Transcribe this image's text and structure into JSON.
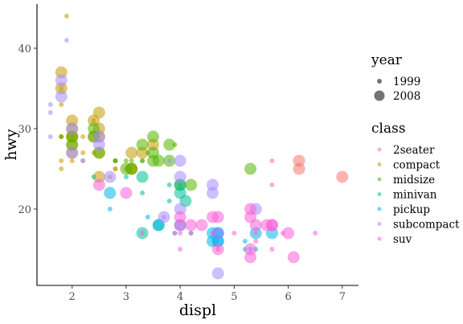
{
  "chart_data": {
    "type": "scatter",
    "xlabel": "displ",
    "ylabel": "hwy",
    "xlim": [
      1.35,
      7.3
    ],
    "ylim": [
      10.5,
      45.5
    ],
    "xticks": [
      2,
      3,
      4,
      5,
      6,
      7
    ],
    "yticks": [
      20,
      30,
      40
    ],
    "grid": false,
    "point_alpha": 0.55,
    "legend_placement": "right",
    "size_legend": {
      "title": "year",
      "entries": [
        {
          "label": "1999",
          "size": "small"
        },
        {
          "label": "2008",
          "size": "large"
        }
      ]
    },
    "color_legend": {
      "title": "class",
      "entries": [
        {
          "label": "2seater",
          "color": "#F8766D"
        },
        {
          "label": "compact",
          "color": "#C49A00"
        },
        {
          "label": "midsize",
          "color": "#53B400"
        },
        {
          "label": "minivan",
          "color": "#00C094"
        },
        {
          "label": "pickup",
          "color": "#00B6EB"
        },
        {
          "label": "subcompact",
          "color": "#A58AFF"
        },
        {
          "label": "suv",
          "color": "#FB61D7"
        }
      ]
    },
    "series": [
      {
        "name": "2seater",
        "color": "#F8766D",
        "points": [
          {
            "x": 5.7,
            "y": 26,
            "year": 1999
          },
          {
            "x": 5.7,
            "y": 23,
            "year": 1999
          },
          {
            "x": 6.2,
            "y": 26,
            "year": 2008
          },
          {
            "x": 6.2,
            "y": 25,
            "year": 2008
          },
          {
            "x": 7.0,
            "y": 24,
            "year": 2008
          }
        ]
      },
      {
        "name": "compact",
        "color": "#C49A00",
        "points": [
          {
            "x": 1.8,
            "y": 29,
            "year": 1999
          },
          {
            "x": 1.8,
            "y": 29,
            "year": 1999
          },
          {
            "x": 2.0,
            "y": 31,
            "year": 2008
          },
          {
            "x": 2.0,
            "y": 30,
            "year": 2008
          },
          {
            "x": 2.8,
            "y": 26,
            "year": 1999
          },
          {
            "x": 2.8,
            "y": 26,
            "year": 1999
          },
          {
            "x": 3.1,
            "y": 27,
            "year": 2008
          },
          {
            "x": 1.8,
            "y": 26,
            "year": 1999
          },
          {
            "x": 1.8,
            "y": 25,
            "year": 1999
          },
          {
            "x": 2.0,
            "y": 28,
            "year": 2008
          },
          {
            "x": 2.0,
            "y": 27,
            "year": 2008
          },
          {
            "x": 2.8,
            "y": 25,
            "year": 1999
          },
          {
            "x": 2.8,
            "y": 25,
            "year": 1999
          },
          {
            "x": 3.1,
            "y": 25,
            "year": 2008
          },
          {
            "x": 3.1,
            "y": 25,
            "year": 2008
          },
          {
            "x": 1.8,
            "y": 33,
            "year": 1999
          },
          {
            "x": 1.8,
            "y": 35,
            "year": 1999
          },
          {
            "x": 1.8,
            "y": 37,
            "year": 2008
          },
          {
            "x": 1.8,
            "y": 35,
            "year": 2008
          },
          {
            "x": 1.9,
            "y": 44,
            "year": 1999
          },
          {
            "x": 2.0,
            "y": 29,
            "year": 1999
          },
          {
            "x": 2.0,
            "y": 26,
            "year": 1999
          },
          {
            "x": 2.0,
            "y": 29,
            "year": 2008
          },
          {
            "x": 2.0,
            "y": 29,
            "year": 2008
          },
          {
            "x": 2.5,
            "y": 29,
            "year": 2008
          },
          {
            "x": 2.5,
            "y": 27,
            "year": 2008
          },
          {
            "x": 2.4,
            "y": 31,
            "year": 1999
          },
          {
            "x": 2.4,
            "y": 27,
            "year": 1999
          },
          {
            "x": 2.2,
            "y": 26,
            "year": 1999
          },
          {
            "x": 2.2,
            "y": 27,
            "year": 1999
          },
          {
            "x": 2.4,
            "y": 31,
            "year": 2008
          },
          {
            "x": 2.5,
            "y": 32,
            "year": 2008
          },
          {
            "x": 3.3,
            "y": 27,
            "year": 2008
          },
          {
            "x": 3.5,
            "y": 28,
            "year": 2008
          },
          {
            "x": 2.7,
            "y": 24,
            "year": 1999
          },
          {
            "x": 2.2,
            "y": 29,
            "year": 1999
          },
          {
            "x": 2.4,
            "y": 29,
            "year": 2008
          },
          {
            "x": 3.0,
            "y": 25,
            "year": 1999
          },
          {
            "x": 2.5,
            "y": 30,
            "year": 2008
          },
          {
            "x": 2.5,
            "y": 24,
            "year": 2008
          }
        ]
      },
      {
        "name": "midsize",
        "color": "#53B400",
        "points": [
          {
            "x": 2.8,
            "y": 26,
            "year": 1999
          },
          {
            "x": 3.1,
            "y": 26,
            "year": 1999
          },
          {
            "x": 4.2,
            "y": 23,
            "year": 2008
          },
          {
            "x": 2.4,
            "y": 30,
            "year": 2008
          },
          {
            "x": 2.4,
            "y": 29,
            "year": 2008
          },
          {
            "x": 3.3,
            "y": 26,
            "year": 1999
          },
          {
            "x": 3.3,
            "y": 26,
            "year": 1999
          },
          {
            "x": 3.8,
            "y": 28,
            "year": 2008
          },
          {
            "x": 3.8,
            "y": 26,
            "year": 2008
          },
          {
            "x": 5.3,
            "y": 25,
            "year": 2008
          },
          {
            "x": 1.8,
            "y": 29,
            "year": 1999
          },
          {
            "x": 2.0,
            "y": 29,
            "year": 2008
          },
          {
            "x": 2.0,
            "y": 28,
            "year": 2008
          },
          {
            "x": 2.8,
            "y": 26,
            "year": 1999
          },
          {
            "x": 2.5,
            "y": 27,
            "year": 2008
          },
          {
            "x": 3.5,
            "y": 29,
            "year": 2008
          },
          {
            "x": 3.5,
            "y": 26,
            "year": 2008
          },
          {
            "x": 3.0,
            "y": 25,
            "year": 2008
          },
          {
            "x": 3.1,
            "y": 25,
            "year": 2008
          },
          {
            "x": 4.0,
            "y": 23,
            "year": 2008
          },
          {
            "x": 3.4,
            "y": 27,
            "year": 1999
          },
          {
            "x": 3.5,
            "y": 27,
            "year": 2008
          },
          {
            "x": 3.6,
            "y": 26,
            "year": 2008
          },
          {
            "x": 3.9,
            "y": 28,
            "year": 1999
          },
          {
            "x": 3.0,
            "y": 26,
            "year": 1999
          },
          {
            "x": 3.3,
            "y": 28,
            "year": 2008
          },
          {
            "x": 4.0,
            "y": 23,
            "year": 1999
          }
        ]
      },
      {
        "name": "minivan",
        "color": "#00C094",
        "points": [
          {
            "x": 2.4,
            "y": 24,
            "year": 1999
          },
          {
            "x": 3.0,
            "y": 24,
            "year": 1999
          },
          {
            "x": 3.3,
            "y": 22,
            "year": 1999
          },
          {
            "x": 3.3,
            "y": 24,
            "year": 2008
          },
          {
            "x": 3.8,
            "y": 23,
            "year": 1999
          },
          {
            "x": 3.8,
            "y": 21,
            "year": 1999
          },
          {
            "x": 4.0,
            "y": 23,
            "year": 2008
          },
          {
            "x": 4.0,
            "y": 22,
            "year": 2008
          },
          {
            "x": 3.3,
            "y": 17,
            "year": 2008
          },
          {
            "x": 4.1,
            "y": 21,
            "year": 2008
          },
          {
            "x": 3.6,
            "y": 18,
            "year": 2008
          }
        ]
      },
      {
        "name": "pickup",
        "color": "#00B6EB",
        "points": [
          {
            "x": 2.7,
            "y": 20,
            "year": 1999
          },
          {
            "x": 2.7,
            "y": 22,
            "year": 2008
          },
          {
            "x": 3.4,
            "y": 19,
            "year": 1999
          },
          {
            "x": 3.9,
            "y": 17,
            "year": 1999
          },
          {
            "x": 4.2,
            "y": 17,
            "year": 1999
          },
          {
            "x": 4.7,
            "y": 17,
            "year": 2008
          },
          {
            "x": 4.7,
            "y": 16,
            "year": 2008
          },
          {
            "x": 5.2,
            "y": 15,
            "year": 1999
          },
          {
            "x": 5.2,
            "y": 16,
            "year": 1999
          },
          {
            "x": 5.7,
            "y": 17,
            "year": 2008
          },
          {
            "x": 4.6,
            "y": 17,
            "year": 2008
          },
          {
            "x": 4.7,
            "y": 17,
            "year": 2008
          },
          {
            "x": 5.4,
            "y": 17,
            "year": 2008
          },
          {
            "x": 3.6,
            "y": 18,
            "year": 2008
          },
          {
            "x": 4.0,
            "y": 18,
            "year": 2008
          },
          {
            "x": 5.3,
            "y": 15,
            "year": 1999
          },
          {
            "x": 5.4,
            "y": 15,
            "year": 1999
          },
          {
            "x": 4.6,
            "y": 16,
            "year": 2008
          },
          {
            "x": 4.7,
            "y": 16,
            "year": 2008
          }
        ]
      },
      {
        "name": "subcompact",
        "color": "#A58AFF",
        "points": [
          {
            "x": 1.9,
            "y": 41,
            "year": 1999
          },
          {
            "x": 1.6,
            "y": 33,
            "year": 1999
          },
          {
            "x": 1.6,
            "y": 32,
            "year": 1999
          },
          {
            "x": 1.6,
            "y": 29,
            "year": 1999
          },
          {
            "x": 1.8,
            "y": 36,
            "year": 2008
          },
          {
            "x": 1.8,
            "y": 34,
            "year": 2008
          },
          {
            "x": 2.0,
            "y": 27,
            "year": 2008
          },
          {
            "x": 2.0,
            "y": 30,
            "year": 2008
          },
          {
            "x": 2.2,
            "y": 26,
            "year": 1999
          },
          {
            "x": 2.5,
            "y": 28,
            "year": 2008
          },
          {
            "x": 2.5,
            "y": 29,
            "year": 2008
          },
          {
            "x": 3.8,
            "y": 26,
            "year": 1999
          },
          {
            "x": 4.0,
            "y": 26,
            "year": 2008
          },
          {
            "x": 4.0,
            "y": 24,
            "year": 2008
          },
          {
            "x": 4.6,
            "y": 23,
            "year": 2008
          },
          {
            "x": 4.6,
            "y": 22,
            "year": 2008
          },
          {
            "x": 5.4,
            "y": 20,
            "year": 2008
          },
          {
            "x": 2.7,
            "y": 24,
            "year": 2008
          },
          {
            "x": 4.0,
            "y": 20,
            "year": 2008
          },
          {
            "x": 3.7,
            "y": 19,
            "year": 2008
          },
          {
            "x": 4.7,
            "y": 12,
            "year": 2008
          },
          {
            "x": 3.7,
            "y": 19,
            "year": 1999
          },
          {
            "x": 4.7,
            "y": 17,
            "year": 2008
          }
        ]
      },
      {
        "name": "suv",
        "color": "#FB61D7",
        "points": [
          {
            "x": 2.5,
            "y": 23,
            "year": 2008
          },
          {
            "x": 3.0,
            "y": 22,
            "year": 2008
          },
          {
            "x": 4.0,
            "y": 19,
            "year": 2008
          },
          {
            "x": 4.0,
            "y": 18,
            "year": 2008
          },
          {
            "x": 4.6,
            "y": 19,
            "year": 2008
          },
          {
            "x": 4.2,
            "y": 18,
            "year": 2008
          },
          {
            "x": 4.4,
            "y": 18,
            "year": 2008
          },
          {
            "x": 4.7,
            "y": 19,
            "year": 2008
          },
          {
            "x": 5.3,
            "y": 20,
            "year": 2008
          },
          {
            "x": 5.3,
            "y": 19,
            "year": 2008
          },
          {
            "x": 5.4,
            "y": 18,
            "year": 2008
          },
          {
            "x": 5.6,
            "y": 18,
            "year": 2008
          },
          {
            "x": 5.7,
            "y": 18,
            "year": 2008
          },
          {
            "x": 6.0,
            "y": 17,
            "year": 2008
          },
          {
            "x": 6.1,
            "y": 14,
            "year": 2008
          },
          {
            "x": 5.3,
            "y": 15,
            "year": 2008
          },
          {
            "x": 5.3,
            "y": 14,
            "year": 2008
          },
          {
            "x": 5.7,
            "y": 18,
            "year": 2008
          },
          {
            "x": 4.7,
            "y": 15,
            "year": 2008
          },
          {
            "x": 3.3,
            "y": 17,
            "year": 1999
          },
          {
            "x": 4.0,
            "y": 15,
            "year": 1999
          },
          {
            "x": 4.2,
            "y": 17,
            "year": 1999
          },
          {
            "x": 4.6,
            "y": 17,
            "year": 1999
          },
          {
            "x": 4.7,
            "y": 15,
            "year": 1999
          },
          {
            "x": 5.0,
            "y": 17,
            "year": 1999
          },
          {
            "x": 5.4,
            "y": 17,
            "year": 1999
          },
          {
            "x": 5.4,
            "y": 16,
            "year": 1999
          },
          {
            "x": 5.7,
            "y": 15,
            "year": 1999
          },
          {
            "x": 5.9,
            "y": 17,
            "year": 1999
          },
          {
            "x": 6.5,
            "y": 17,
            "year": 1999
          },
          {
            "x": 4.0,
            "y": 17,
            "year": 1999
          },
          {
            "x": 3.9,
            "y": 17,
            "year": 1999
          }
        ]
      }
    ]
  }
}
